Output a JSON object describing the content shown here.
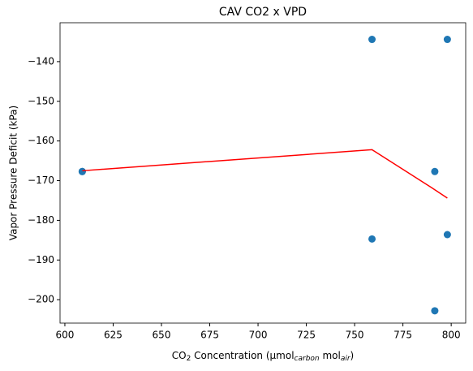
{
  "chart_data": {
    "type": "scatter",
    "title": "CAV CO2 x VPD",
    "xlabel": [
      "CO",
      "2",
      " Concentration (μmol",
      "carbon",
      " mol",
      "air",
      ")"
    ],
    "ylabel": "Vapor Pressure Deficit (kPa)",
    "xlim": [
      597.5,
      807.5
    ],
    "ylim": [
      -205.9,
      -130.2
    ],
    "xticks": [
      600,
      625,
      650,
      675,
      700,
      725,
      750,
      775,
      800
    ],
    "yticks": [
      {
        "value": -140,
        "label": "−140"
      },
      {
        "value": -150,
        "label": "−150"
      },
      {
        "value": -160,
        "label": "−160"
      },
      {
        "value": -170,
        "label": "−170"
      },
      {
        "value": -180,
        "label": "−180"
      },
      {
        "value": -190,
        "label": "−190"
      },
      {
        "value": -200,
        "label": "−200"
      }
    ],
    "series": [
      {
        "type": "scatter",
        "color": "#1f77b4",
        "x": [
          609,
          609,
          759,
          798,
          759,
          791.5,
          798,
          791.5
        ],
        "values": [
          -167.7,
          -167.7,
          -134.4,
          -134.4,
          -184.7,
          -167.7,
          -183.6,
          -202.8
        ]
      },
      {
        "type": "line",
        "color": "#ff0000",
        "x": [
          609,
          759,
          790,
          798
        ],
        "values": [
          -167.5,
          -162.2,
          -171.8,
          -174.4
        ]
      }
    ]
  }
}
